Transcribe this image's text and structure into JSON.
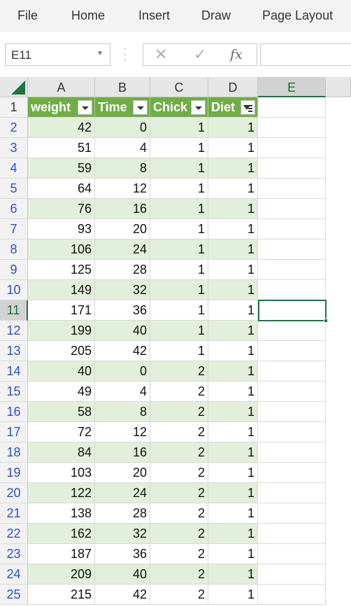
{
  "menu": [
    "File",
    "Home",
    "Insert",
    "Draw",
    "Page Layout"
  ],
  "formula_bar": {
    "name_box": "E11",
    "cancel_symbol": "✕",
    "enter_symbol": "✓",
    "fx_label": "fx",
    "formula": ""
  },
  "columns": [
    "A",
    "B",
    "C",
    "D",
    "E"
  ],
  "selected_column": "E",
  "selected_row": 11,
  "table": {
    "style_colors": {
      "header": "#70ad47",
      "band": "#e2efda",
      "active_cell_border": "#217346"
    },
    "headers": [
      {
        "label": "weight",
        "filter": "dropdown-icon"
      },
      {
        "label": "Time",
        "filter": "dropdown-icon"
      },
      {
        "label": "Chick",
        "filter": "dropdown-icon"
      },
      {
        "label": "Diet",
        "filter": "filter-applied-icon"
      }
    ],
    "rows": [
      {
        "row": "2",
        "cells": [
          "42",
          "0",
          "1",
          "1"
        ]
      },
      {
        "row": "3",
        "cells": [
          "51",
          "4",
          "1",
          "1"
        ]
      },
      {
        "row": "4",
        "cells": [
          "59",
          "8",
          "1",
          "1"
        ]
      },
      {
        "row": "5",
        "cells": [
          "64",
          "12",
          "1",
          "1"
        ]
      },
      {
        "row": "6",
        "cells": [
          "76",
          "16",
          "1",
          "1"
        ]
      },
      {
        "row": "7",
        "cells": [
          "93",
          "20",
          "1",
          "1"
        ]
      },
      {
        "row": "8",
        "cells": [
          "106",
          "24",
          "1",
          "1"
        ]
      },
      {
        "row": "9",
        "cells": [
          "125",
          "28",
          "1",
          "1"
        ]
      },
      {
        "row": "10",
        "cells": [
          "149",
          "32",
          "1",
          "1"
        ]
      },
      {
        "row": "11",
        "cells": [
          "171",
          "36",
          "1",
          "1"
        ]
      },
      {
        "row": "12",
        "cells": [
          "199",
          "40",
          "1",
          "1"
        ]
      },
      {
        "row": "13",
        "cells": [
          "205",
          "42",
          "1",
          "1"
        ]
      },
      {
        "row": "14",
        "cells": [
          "40",
          "0",
          "2",
          "1"
        ]
      },
      {
        "row": "15",
        "cells": [
          "49",
          "4",
          "2",
          "1"
        ]
      },
      {
        "row": "16",
        "cells": [
          "58",
          "8",
          "2",
          "1"
        ]
      },
      {
        "row": "17",
        "cells": [
          "72",
          "12",
          "2",
          "1"
        ]
      },
      {
        "row": "18",
        "cells": [
          "84",
          "16",
          "2",
          "1"
        ]
      },
      {
        "row": "19",
        "cells": [
          "103",
          "20",
          "2",
          "1"
        ]
      },
      {
        "row": "20",
        "cells": [
          "122",
          "24",
          "2",
          "1"
        ]
      },
      {
        "row": "21",
        "cells": [
          "138",
          "28",
          "2",
          "1"
        ]
      },
      {
        "row": "22",
        "cells": [
          "162",
          "32",
          "2",
          "1"
        ]
      },
      {
        "row": "23",
        "cells": [
          "187",
          "36",
          "2",
          "1"
        ]
      },
      {
        "row": "24",
        "cells": [
          "209",
          "40",
          "2",
          "1"
        ]
      },
      {
        "row": "25",
        "cells": [
          "215",
          "42",
          "2",
          "1"
        ]
      }
    ]
  }
}
